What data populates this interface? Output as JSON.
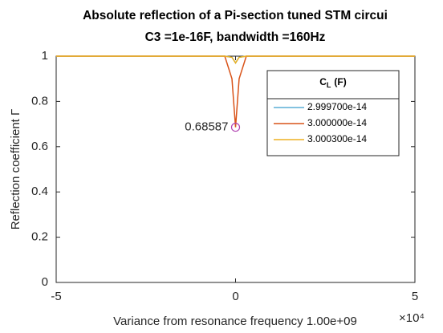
{
  "chart_data": {
    "type": "line",
    "title": "Absolute reflection of a Pi-section tuned STM circui",
    "subtitle": "C3 =1e-16F, bandwidth =160Hz",
    "xlabel": "Variance from resonance frequency 1.00e+09",
    "x_exponent": "×10⁴",
    "ylabel": "Reflection coefficient Γ",
    "x": [
      -5,
      -0.3,
      -0.1,
      0,
      0.1,
      0.3,
      5
    ],
    "series": [
      {
        "name": "2.999700e-14",
        "color": "#5aaed6",
        "values": [
          1,
          1,
          0.995,
          0.97,
          0.995,
          1,
          1
        ]
      },
      {
        "name": "3.000000e-14",
        "color": "#d95319",
        "values": [
          1,
          1,
          0.9,
          0.68587,
          0.9,
          1,
          1
        ]
      },
      {
        "name": "3.000300e-14",
        "color": "#edb120",
        "values": [
          1,
          1,
          0.995,
          0.97,
          0.995,
          1,
          1
        ]
      }
    ],
    "legend_title": {
      "base": "C",
      "sub": "L",
      "suffix": "(F)"
    },
    "legend_position": "upper right",
    "annotations": [
      {
        "text": "0.68587",
        "x": 0,
        "y": 0.68587
      }
    ],
    "xlim": [
      -5,
      5
    ],
    "xticks": [
      -5,
      0,
      5
    ],
    "ylim": [
      0,
      1
    ],
    "yticks": [
      0,
      0.2,
      0.4,
      0.6,
      0.8,
      1
    ],
    "grid": false
  }
}
